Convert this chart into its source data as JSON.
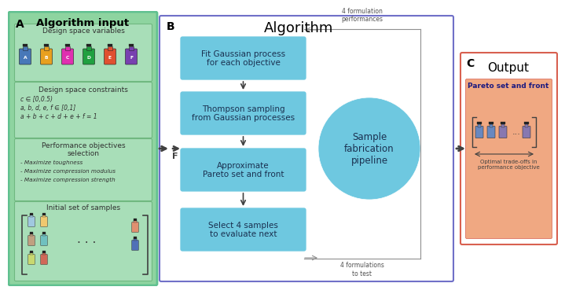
{
  "panel_A_bg": "#8ed4a0",
  "panel_A_border": "#60c090",
  "panel_B_bg": "#ffffff",
  "panel_B_border": "#7070c8",
  "panel_C_bg": "#ffffff",
  "panel_C_border": "#d86050",
  "panel_C_inner_bg": "#f0a882",
  "box_color": "#6ec8e0",
  "circle_color": "#6ec8e0",
  "arrow_color": "#404040",
  "loop_color": "#909090",
  "title_A": "Algorithm input",
  "title_B": "Algorithm",
  "title_C": "Output",
  "label_A": "A",
  "label_B": "B",
  "label_C": "C",
  "section1_title": "Design space variables",
  "section2_title": "Design space constraints",
  "section2_lines": [
    "c ∈ [0,0.5)",
    "a, b, d, e, f ∈ [0,1]",
    "a + b + c + d + e + f = 1"
  ],
  "section3_title_1": "Performance objectives",
  "section3_title_2": "selection",
  "section3_lines": [
    "- Maximize toughness",
    "- Maximize compression modulus",
    "- Maximize compression strength"
  ],
  "section4_title": "Initial set of samples",
  "box1_text": "Fit Gaussian process\nfor each objective",
  "box2_text": "Thompson sampling\nfrom Gaussian processes",
  "box3_text": "Approximate\nPareto set and front",
  "box4_text": "Select 4 samples\nto evaluate next",
  "circle_text": "Sample\nfabrication\npipeline",
  "label_top_right": "4 formulation\nperformances",
  "label_bottom_right": "4 formulations\nto test",
  "output_label": "Pareto set and front",
  "output_subtitle": "Optimal trade-offs in\nperformance objective",
  "F_label": "F",
  "bottle_colors_row1": [
    "#4878b8",
    "#e8a020",
    "#e030b0",
    "#20a040",
    "#e05030",
    "#7840b0"
  ],
  "bottle_letters": [
    "A",
    "B",
    "C",
    "D",
    "E",
    "F"
  ],
  "mini_bottle_colors": [
    "#a0c8e0",
    "#f0c870",
    "#c0a080",
    "#70c0c0",
    "#c8d870",
    "#d06858",
    "#e09070",
    "#5070b8"
  ],
  "output_bottle_colors": [
    "#6888c0",
    "#6888c0",
    "#8878b0",
    "#8878b0"
  ]
}
